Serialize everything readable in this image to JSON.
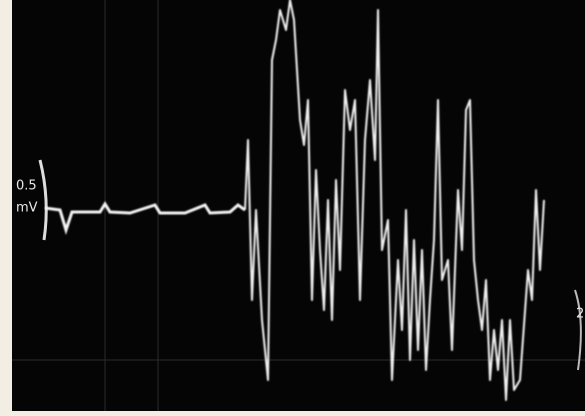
{
  "labels": {
    "amplitude_value": "0.5",
    "amplitude_unit": "mV",
    "right_edge_value": "2"
  }
}
